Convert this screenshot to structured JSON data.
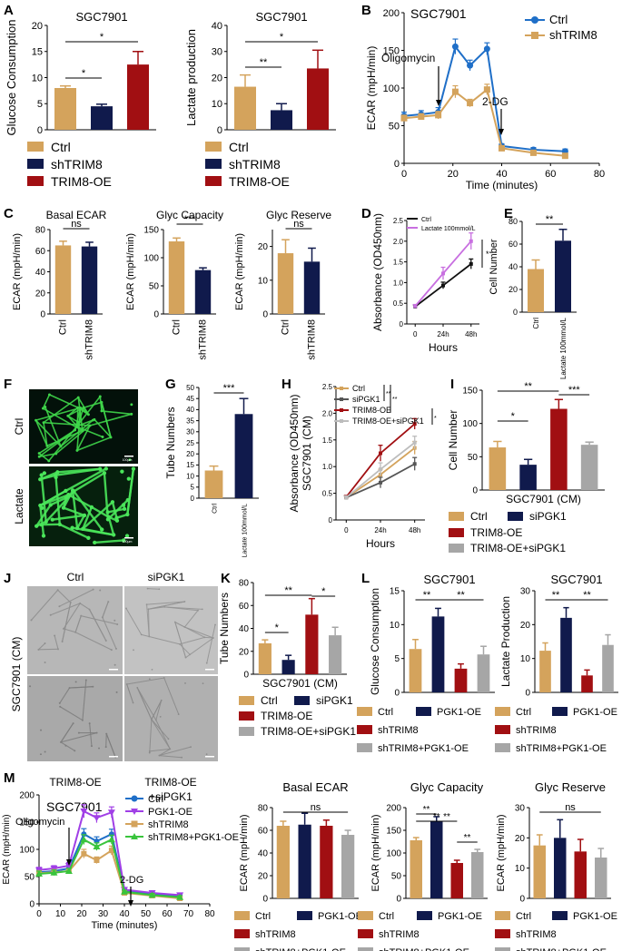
{
  "colors": {
    "ctrl": "#d4a35c",
    "sh": "#101a4c",
    "oe": "#a10f12",
    "grey": "#a6a6a6",
    "ecarCtrl": "#1f6fc8",
    "ecarSh": "#d4a35c",
    "linesD_ctrl": "#111111",
    "linesD_lac": "#c86fe0",
    "purple": "#a03fe6",
    "green": "#39c43c"
  },
  "panels": {
    "A": "A",
    "B": "B",
    "C": "C",
    "D": "D",
    "E": "E",
    "F": "F",
    "G": "G",
    "H": "H",
    "I": "I",
    "J": "J",
    "K": "K",
    "L": "L",
    "M": "M"
  },
  "legends": {
    "A": [
      "Ctrl",
      "shTRIM8",
      "TRIM8-OE"
    ],
    "B": [
      "Ctrl",
      "shTRIM8"
    ],
    "D": [
      "Ctrl",
      "Lactate 100mmol/L"
    ],
    "H": [
      "Ctrl",
      "siPGK1",
      "TRIM8-OE",
      "TRIM8-OE+siPGK1"
    ],
    "I": [
      "Ctrl",
      "siPGK1",
      "TRIM8-OE",
      "TRIM8-OE+siPGK1"
    ],
    "L": [
      "Ctrl",
      "PGK1-OE",
      "shTRIM8",
      "shTRIM8+PGK1-OE"
    ],
    "M": [
      "Ctrl",
      "PGK1-OE",
      "shTRIM8",
      "shTRIM8+PGK1-OE"
    ]
  },
  "images": {
    "F": {
      "top_label": "Ctrl",
      "bottom_label": "Lactate",
      "scale": "100μm"
    },
    "J": {
      "col1": "Ctrl",
      "col2": "siPGK1",
      "row_label": "SGC7901 (CM)",
      "bottom1": "TRIM8-OE",
      "bottom2a": "TRIM8-OE",
      "bottom2b": "+siPGK1",
      "scale": "100μm"
    }
  },
  "chart_data": [
    {
      "id": "A1",
      "type": "bar",
      "title": "SGC7901",
      "ylabel": "Glucose Consumption",
      "ylim": [
        0,
        20
      ],
      "yticks": [
        0,
        5,
        10,
        15,
        20
      ],
      "categories": [
        "Ctrl",
        "shTRIM8",
        "TRIM8-OE"
      ],
      "values": [
        8,
        4.5,
        12.5
      ],
      "errors": [
        0.4,
        0.4,
        2.5
      ],
      "sig": [
        {
          "a": 0,
          "b": 1,
          "label": "*"
        },
        {
          "a": 0,
          "b": 2,
          "label": "*"
        }
      ]
    },
    {
      "id": "A2",
      "type": "bar",
      "title": "SGC7901",
      "ylabel": "Lactate production",
      "ylim": [
        0,
        40
      ],
      "yticks": [
        0,
        10,
        20,
        30,
        40
      ],
      "categories": [
        "Ctrl",
        "shTRIM8",
        "TRIM8-OE"
      ],
      "values": [
        16.5,
        7.5,
        23.5
      ],
      "errors": [
        4.5,
        2.5,
        7
      ],
      "sig": [
        {
          "a": 0,
          "b": 1,
          "label": "**"
        },
        {
          "a": 0,
          "b": 2,
          "label": "*"
        }
      ]
    },
    {
      "id": "B",
      "type": "line",
      "title": "SGC7901",
      "xlabel": "Time (minutes)",
      "ylabel": "ECAR (mpH/min)",
      "xlim": [
        0,
        80
      ],
      "ylim": [
        0,
        200
      ],
      "xticks": [
        0,
        20,
        40,
        60,
        80
      ],
      "yticks": [
        0,
        50,
        100,
        150,
        200
      ],
      "annotations": [
        "Oligomycin",
        "2-DG"
      ],
      "series": [
        {
          "name": "Ctrl",
          "x": [
            0,
            7,
            14,
            21,
            27,
            34,
            40,
            53,
            66
          ],
          "y": [
            63,
            65,
            68,
            155,
            130,
            152,
            23,
            18,
            16
          ],
          "err": [
            5,
            5,
            6,
            10,
            7,
            8,
            3,
            3,
            3
          ]
        },
        {
          "name": "shTRIM8",
          "x": [
            0,
            7,
            14,
            21,
            27,
            34,
            40,
            53,
            66
          ],
          "y": [
            60,
            62,
            64,
            95,
            80,
            98,
            20,
            14,
            10
          ],
          "err": [
            4,
            4,
            5,
            8,
            5,
            7,
            3,
            3,
            3
          ]
        }
      ]
    },
    {
      "id": "C1",
      "type": "bar",
      "title": "Basal ECAR",
      "ylabel": "ECAR (mpH/min)",
      "ylim": [
        0,
        80
      ],
      "yticks": [
        0,
        20,
        40,
        60,
        80
      ],
      "categories": [
        "Ctrl",
        "shTRIM8"
      ],
      "values": [
        65,
        64
      ],
      "errors": [
        4,
        4
      ],
      "sig": [
        {
          "a": 0,
          "b": 1,
          "label": "ns"
        }
      ]
    },
    {
      "id": "C2",
      "type": "bar",
      "title": "Glyc Capacity",
      "ylabel": "ECAR (mpH/min)",
      "ylim": [
        0,
        150
      ],
      "yticks": [
        0,
        50,
        100,
        150
      ],
      "categories": [
        "Ctrl",
        "shTRIM8"
      ],
      "values": [
        129,
        78
      ],
      "errors": [
        6,
        4
      ],
      "sig": [
        {
          "a": 0,
          "b": 1,
          "label": "***"
        }
      ]
    },
    {
      "id": "C3",
      "type": "bar",
      "title": "Glyc Reserve",
      "ylabel": "ECAR (mpH/min)",
      "ylim": [
        0,
        25
      ],
      "yticks": [
        0,
        10,
        20
      ],
      "categories": [
        "Ctrl",
        "shTRIM8"
      ],
      "values": [
        18,
        15.5
      ],
      "errors": [
        4,
        4
      ],
      "sig": [
        {
          "a": 0,
          "b": 1,
          "label": "ns"
        }
      ]
    },
    {
      "id": "D",
      "type": "line",
      "xlabel": "Hours",
      "ylabel": "Absorbance (OD450nm)",
      "ylim": [
        0,
        2.5
      ],
      "yticks": [
        0,
        0.5,
        1.0,
        1.5,
        2.0,
        2.5
      ],
      "categories": [
        "0",
        "24h",
        "48h"
      ],
      "sig_label": "*",
      "series": [
        {
          "name": "Ctrl",
          "y": [
            0.42,
            0.93,
            1.45
          ],
          "err": [
            0.04,
            0.08,
            0.12
          ]
        },
        {
          "name": "Lactate 100mmol/L",
          "y": [
            0.43,
            1.22,
            2.0
          ],
          "err": [
            0.04,
            0.15,
            0.2
          ]
        }
      ]
    },
    {
      "id": "E",
      "type": "bar",
      "ylabel": "Cell Number",
      "ylim": [
        0,
        80
      ],
      "yticks": [
        0,
        20,
        40,
        60,
        80
      ],
      "categories": [
        "Ctrl",
        "Lactate 100mmol/L"
      ],
      "values": [
        38,
        63
      ],
      "errors": [
        8,
        10
      ],
      "sig": [
        {
          "a": 0,
          "b": 1,
          "label": "**"
        }
      ]
    },
    {
      "id": "G",
      "type": "bar",
      "ylabel": "Tube Numbers",
      "ylim": [
        0,
        50
      ],
      "yticks": [
        0,
        5,
        10,
        15,
        20,
        25,
        30,
        35,
        40,
        45,
        50
      ],
      "categories": [
        "Ctrl",
        "Lactate 100mmol/L"
      ],
      "values": [
        12.5,
        38
      ],
      "errors": [
        2,
        7
      ],
      "sig": [
        {
          "a": 0,
          "b": 1,
          "label": "***"
        }
      ]
    },
    {
      "id": "H",
      "type": "line",
      "xlabel": "Hours",
      "ylabel": "SGC7901 (CM)",
      "ylabel2": "Absorbance (OD450nm)",
      "ylim": [
        0,
        2.5
      ],
      "yticks": [
        0,
        0.5,
        1.0,
        1.5,
        2.0,
        2.5
      ],
      "categories": [
        "0",
        "24h",
        "48h"
      ],
      "series": [
        {
          "name": "Ctrl",
          "y": [
            0.42,
            0.85,
            1.35
          ],
          "err": [
            0.03,
            0.1,
            0.12
          ]
        },
        {
          "name": "siPGK1",
          "y": [
            0.42,
            0.7,
            1.05
          ],
          "err": [
            0.03,
            0.1,
            0.12
          ]
        },
        {
          "name": "TRIM8-OE",
          "y": [
            0.43,
            1.25,
            1.8
          ],
          "err": [
            0.03,
            0.15,
            0.1
          ]
        },
        {
          "name": "TRIM8-OE+siPGK1",
          "y": [
            0.42,
            0.95,
            1.45
          ],
          "err": [
            0.03,
            0.12,
            0.12
          ]
        }
      ]
    },
    {
      "id": "I",
      "type": "bar",
      "xlabel": "SGC7901 (CM)",
      "ylabel": "Cell Number",
      "ylim": [
        0,
        150
      ],
      "yticks": [
        0,
        50,
        100,
        150
      ],
      "categories": [
        "Ctrl",
        "siPGK1",
        "TRIM8-OE",
        "TRIM8-OE+siPGK1"
      ],
      "values": [
        64,
        38,
        122,
        68
      ],
      "errors": [
        9,
        8,
        14,
        4
      ],
      "sig": [
        {
          "a": 0,
          "b": 1,
          "label": "*"
        },
        {
          "a": 0,
          "b": 2,
          "label": "**"
        },
        {
          "a": 2,
          "b": 3,
          "label": "***"
        }
      ]
    },
    {
      "id": "K",
      "type": "bar",
      "xlabel": "SGC7901 (CM)",
      "ylabel": "Tube Numbers",
      "ylim": [
        0,
        80
      ],
      "yticks": [
        0,
        20,
        40,
        60,
        80
      ],
      "categories": [
        "Ctrl",
        "siPGK1",
        "TRIM8-OE",
        "TRIM8-OE+siPGK1"
      ],
      "values": [
        27,
        12.5,
        52,
        34
      ],
      "errors": [
        3,
        4,
        14,
        7
      ],
      "sig": [
        {
          "a": 0,
          "b": 1,
          "label": "*"
        },
        {
          "a": 0,
          "b": 2,
          "label": "**"
        },
        {
          "a": 2,
          "b": 3,
          "label": "*"
        }
      ]
    },
    {
      "id": "L1",
      "type": "bar",
      "title": "SGC7901",
      "ylabel": "Glucose Consumption",
      "ylim": [
        0,
        15
      ],
      "yticks": [
        0,
        5,
        10,
        15
      ],
      "categories": [
        "Ctrl",
        "PGK1-OE",
        "shTRIM8",
        "shTRIM8+PGK1-OE"
      ],
      "values": [
        6.4,
        11.2,
        3.5,
        5.6
      ],
      "errors": [
        1.4,
        1.2,
        0.7,
        1.2
      ],
      "sig": [
        {
          "a": 0,
          "b": 1,
          "label": "**"
        },
        {
          "a": 1,
          "b": 3,
          "label": "**"
        }
      ]
    },
    {
      "id": "L2",
      "type": "bar",
      "title": "SGC7901",
      "ylabel": "Lactate Production",
      "ylim": [
        0,
        30
      ],
      "yticks": [
        0,
        10,
        20,
        30
      ],
      "categories": [
        "Ctrl",
        "PGK1-OE",
        "shTRIM8",
        "shTRIM8+PGK1-OE"
      ],
      "values": [
        12.3,
        22,
        5,
        14
      ],
      "errors": [
        2.3,
        3,
        1.6,
        3
      ],
      "sig": [
        {
          "a": 0,
          "b": 1,
          "label": "**"
        },
        {
          "a": 1,
          "b": 3,
          "label": "**"
        }
      ]
    },
    {
      "id": "M",
      "type": "line",
      "title": "SGC7901",
      "xlabel": "Time (minutes)",
      "ylabel": "ECAR (mpH/min)",
      "xlim": [
        0,
        80
      ],
      "ylim": [
        0,
        200
      ],
      "xticks": [
        0,
        10,
        20,
        30,
        40,
        50,
        60,
        70,
        80
      ],
      "yticks": [
        0,
        50,
        100,
        150,
        200
      ],
      "annotations": [
        "Oligomycin",
        "2-DG"
      ],
      "series": [
        {
          "name": "Ctrl",
          "x": [
            0,
            7,
            14,
            21,
            27,
            34,
            40,
            53,
            66
          ],
          "y": [
            58,
            60,
            65,
            128,
            115,
            128,
            25,
            18,
            15
          ],
          "err": [
            5,
            5,
            6,
            10,
            8,
            9,
            3,
            3,
            3
          ]
        },
        {
          "name": "PGK1-OE",
          "x": [
            0,
            7,
            14,
            21,
            27,
            34,
            40,
            53,
            66
          ],
          "y": [
            62,
            65,
            70,
            170,
            158,
            168,
            26,
            20,
            16
          ],
          "err": [
            5,
            5,
            6,
            12,
            9,
            10,
            3,
            3,
            3
          ]
        },
        {
          "name": "shTRIM8",
          "x": [
            0,
            7,
            14,
            21,
            27,
            34,
            40,
            53,
            66
          ],
          "y": [
            56,
            58,
            60,
            92,
            80,
            98,
            20,
            15,
            10
          ],
          "err": [
            5,
            5,
            5,
            8,
            6,
            8,
            3,
            3,
            3
          ]
        },
        {
          "name": "shTRIM8+PGK1-OE",
          "x": [
            0,
            7,
            14,
            21,
            27,
            34,
            40,
            53,
            66
          ],
          "y": [
            55,
            57,
            60,
            118,
            105,
            118,
            22,
            16,
            12
          ],
          "err": [
            5,
            5,
            5,
            9,
            7,
            8,
            3,
            3,
            3
          ]
        }
      ]
    },
    {
      "id": "M1",
      "type": "bar",
      "title": "Basal ECAR",
      "ylabel": "ECAR (mpH/min)",
      "ylim": [
        0,
        80
      ],
      "yticks": [
        0,
        20,
        40,
        60,
        80
      ],
      "categories": [
        "Ctrl",
        "PGK1-OE",
        "shTRIM8",
        "shTRIM8+PGK1-OE"
      ],
      "values": [
        64,
        65,
        64,
        56
      ],
      "errors": [
        4,
        10,
        5,
        4
      ],
      "sig": [
        {
          "a": 0,
          "b": 3,
          "label": "ns"
        }
      ]
    },
    {
      "id": "M2",
      "type": "bar",
      "title": "Glyc Capacity",
      "ylabel": "ECAR (mpH/min)",
      "ylim": [
        0,
        200
      ],
      "yticks": [
        0,
        50,
        100,
        150,
        200
      ],
      "categories": [
        "Ctrl",
        "PGK1-OE",
        "shTRIM8",
        "shTRIM8+PGK1-OE"
      ],
      "values": [
        128,
        170,
        78,
        102
      ],
      "errors": [
        6,
        10,
        6,
        6
      ],
      "sig": [
        {
          "a": 0,
          "b": 1,
          "label": "**"
        },
        {
          "a": 0,
          "b": 2,
          "label": "**"
        },
        {
          "a": 1,
          "b": 2,
          "label": "**"
        },
        {
          "a": 2,
          "b": 3,
          "label": "**"
        }
      ]
    },
    {
      "id": "M3",
      "type": "bar",
      "title": "Glyc Reserve",
      "ylabel": "ECAR (mpH/min)",
      "ylim": [
        0,
        30
      ],
      "yticks": [
        0,
        10,
        20,
        30
      ],
      "categories": [
        "Ctrl",
        "PGK1-OE",
        "shTRIM8",
        "shTRIM8+PGK1-OE"
      ],
      "values": [
        17.5,
        20,
        15.5,
        13.5
      ],
      "errors": [
        3.5,
        6,
        4,
        3
      ],
      "sig": [
        {
          "a": 0,
          "b": 3,
          "label": "ns"
        }
      ]
    }
  ]
}
